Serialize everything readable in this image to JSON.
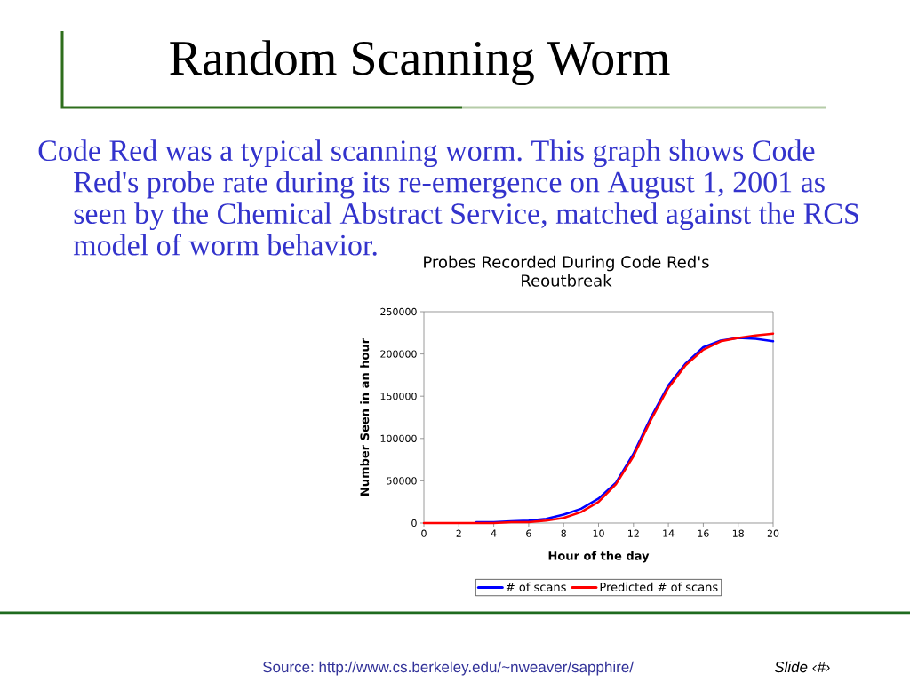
{
  "chart_data": {
    "type": "line",
    "title": "Probes Recorded During Code Red's Reoutbreak",
    "xlabel": "Hour of the day",
    "ylabel": "Number Seen in an hour",
    "x": [
      0,
      1,
      2,
      3,
      4,
      5,
      6,
      7,
      8,
      9,
      10,
      11,
      12,
      13,
      14,
      15,
      16,
      17,
      18,
      19,
      20
    ],
    "series": [
      {
        "name": "# of scans",
        "color": "#0000ff",
        "values": [
          null,
          null,
          null,
          1000,
          1000,
          2000,
          3000,
          5000,
          10000,
          17000,
          29000,
          48000,
          82000,
          125000,
          163000,
          189000,
          208000,
          216000,
          219000,
          218000,
          215000
        ]
      },
      {
        "name": "Predicted # of scans",
        "color": "#ff0000",
        "values": [
          0,
          0,
          0,
          0,
          0,
          1000,
          1000,
          3000,
          6000,
          13000,
          25000,
          46000,
          79000,
          122000,
          160000,
          187000,
          205000,
          215000,
          219000,
          222000,
          224000
        ]
      }
    ],
    "xlim": [
      0,
      20
    ],
    "ylim": [
      0,
      250000
    ],
    "xticks": [
      0,
      2,
      4,
      6,
      8,
      10,
      12,
      14,
      16,
      18,
      20
    ],
    "yticks": [
      0,
      50000,
      100000,
      150000,
      200000,
      250000
    ],
    "legend": "bottom",
    "line_style": "solid",
    "annotations": [
      "Random Scanning Worm",
      "Code Red was a typical scanning worm. This graph shows Code Red's probe rate during its re-emergence on August 1, 2001 as seen by the Chemical Abstract Service, matched against the RCS model of worm behavior.",
      "Source: http://www.cs.berkeley.edu/~nweaver/sapphire/",
      "Slide ‹#›"
    ]
  }
}
